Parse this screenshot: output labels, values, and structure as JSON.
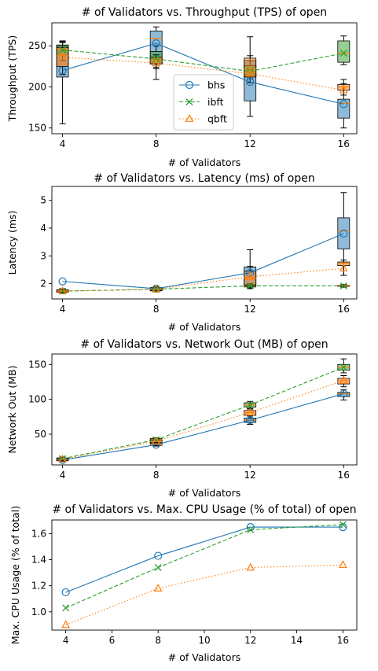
{
  "chart_data": [
    {
      "type": "line",
      "title": "# of Validators vs. Throughput (TPS) of open",
      "xlabel": "# of Validators",
      "ylabel": "Throughput (TPS)",
      "x": [
        4,
        8,
        12,
        16
      ],
      "xticks": [
        "4",
        "8",
        "12",
        "16"
      ],
      "ylim": [
        143,
        278
      ],
      "yticks": [
        150,
        200,
        250
      ],
      "legend": "center",
      "series": [
        {
          "name": "bhs",
          "color": "#1f77b4",
          "marker": "circle",
          "dash": "solid",
          "values": [
            220,
            253,
            206,
            179
          ],
          "box": [
            {
              "x": 4,
              "whislo": 155,
              "q1": 212,
              "med": 228,
              "q3": 250,
              "whishi": 256
            },
            {
              "x": 8,
              "whislo": 209,
              "q1": 228,
              "med": 259,
              "q3": 268,
              "whishi": 273
            },
            {
              "x": 12,
              "whislo": 164,
              "q1": 183,
              "med": 213,
              "q3": 232,
              "whishi": 261
            },
            {
              "x": 16,
              "whislo": 150,
              "q1": 162,
              "med": 180,
              "q3": 185,
              "whishi": 204
            }
          ]
        },
        {
          "name": "ibft",
          "color": "#2ca02c",
          "marker": "x",
          "dash": "dashed",
          "values": [
            245,
            234,
            219,
            241
          ],
          "box": [
            {
              "x": 4,
              "whislo": 232,
              "q1": 238,
              "med": 247,
              "q3": 251,
              "whishi": 254
            },
            {
              "x": 8,
              "whislo": 222,
              "q1": 228,
              "med": 235,
              "q3": 243,
              "whishi": 250
            },
            {
              "x": 12,
              "whislo": 210,
              "q1": 213,
              "med": 218,
              "q3": 226,
              "whishi": 232
            },
            {
              "x": 16,
              "whislo": 227,
              "q1": 230,
              "med": 241,
              "q3": 256,
              "whishi": 262
            }
          ]
        },
        {
          "name": "qbft",
          "color": "#ff7f0e",
          "marker": "triangle",
          "dash": "dotted",
          "values": [
            236,
            229,
            216,
            196
          ],
          "box": [
            {
              "x": 4,
              "whislo": 215,
              "q1": 225,
              "med": 238,
              "q3": 248,
              "whishi": 255
            },
            {
              "x": 8,
              "whislo": 224,
              "q1": 228,
              "med": 232,
              "q3": 236,
              "whishi": 239
            },
            {
              "x": 12,
              "whislo": 205,
              "q1": 212,
              "med": 222,
              "q3": 235,
              "whishi": 238
            },
            {
              "x": 16,
              "whislo": 190,
              "q1": 196,
              "med": 200,
              "q3": 203,
              "whishi": 209
            }
          ]
        }
      ]
    },
    {
      "type": "line",
      "title": "# of Validators vs. Latency (ms) of open",
      "xlabel": "# of Validators",
      "ylabel": "Latency (ms)",
      "x": [
        4,
        8,
        12,
        16
      ],
      "xticks": [
        "4",
        "8",
        "12",
        "16"
      ],
      "ylim": [
        1.45,
        5.5
      ],
      "yticks": [
        2,
        3,
        4,
        5
      ],
      "series": [
        {
          "name": "bhs",
          "color": "#1f77b4",
          "marker": "circle",
          "dash": "solid",
          "values": [
            2.08,
            1.82,
            2.39,
            3.8
          ],
          "box": [
            {
              "x": 4,
              "whislo": 1.66,
              "q1": 1.7,
              "med": 1.74,
              "q3": 1.78,
              "whishi": 1.82
            },
            {
              "x": 8,
              "whislo": 1.7,
              "q1": 1.74,
              "med": 1.8,
              "q3": 1.86,
              "whishi": 1.9
            },
            {
              "x": 12,
              "whislo": 1.82,
              "q1": 1.95,
              "med": 2.2,
              "q3": 2.6,
              "whishi": 3.22
            },
            {
              "x": 16,
              "whislo": 2.3,
              "q1": 3.25,
              "med": 3.9,
              "q3": 4.37,
              "whishi": 5.28
            }
          ]
        },
        {
          "name": "ibft",
          "color": "#2ca02c",
          "marker": "x",
          "dash": "dashed",
          "values": [
            1.73,
            1.8,
            1.92,
            1.92
          ],
          "box": [
            {
              "x": 4,
              "whislo": 1.68,
              "q1": 1.7,
              "med": 1.73,
              "q3": 1.76,
              "whishi": 1.78
            },
            {
              "x": 8,
              "whislo": 1.74,
              "q1": 1.77,
              "med": 1.8,
              "q3": 1.83,
              "whishi": 1.86
            },
            {
              "x": 12,
              "whislo": 1.84,
              "q1": 1.88,
              "med": 1.92,
              "q3": 1.96,
              "whishi": 2.0
            },
            {
              "x": 16,
              "whislo": 1.87,
              "q1": 1.9,
              "med": 1.92,
              "q3": 1.94,
              "whishi": 1.97
            }
          ]
        },
        {
          "name": "qbft",
          "color": "#ff7f0e",
          "marker": "triangle",
          "dash": "dotted",
          "values": [
            1.73,
            1.8,
            2.25,
            2.55
          ],
          "box": [
            {
              "x": 4,
              "whislo": 1.66,
              "q1": 1.7,
              "med": 1.74,
              "q3": 1.78,
              "whishi": 1.81
            },
            {
              "x": 8,
              "whislo": 1.72,
              "q1": 1.76,
              "med": 1.8,
              "q3": 1.84,
              "whishi": 1.88
            },
            {
              "x": 12,
              "whislo": 1.85,
              "q1": 1.95,
              "med": 2.2,
              "q3": 2.45,
              "whishi": 2.62
            },
            {
              "x": 16,
              "whislo": 2.3,
              "q1": 2.65,
              "med": 2.73,
              "q3": 2.78,
              "whishi": 2.85
            }
          ]
        }
      ]
    },
    {
      "type": "line",
      "title": "# of Validators vs. Network Out (MB) of open",
      "xlabel": "# of Validators",
      "ylabel": "Network Out (MB)",
      "x": [
        4,
        8,
        12,
        16
      ],
      "xticks": [
        "4",
        "8",
        "12",
        "16"
      ],
      "ylim": [
        6,
        165
      ],
      "yticks": [
        50,
        100,
        150
      ],
      "series": [
        {
          "name": "bhs",
          "color": "#1f77b4",
          "marker": "circle",
          "dash": "solid",
          "values": [
            13,
            35,
            70,
            108
          ],
          "box": [
            {
              "x": 4,
              "whislo": 11,
              "q1": 12,
              "med": 13,
              "q3": 14,
              "whishi": 15
            },
            {
              "x": 8,
              "whislo": 33,
              "q1": 34,
              "med": 35,
              "q3": 37,
              "whishi": 38
            },
            {
              "x": 12,
              "whislo": 64,
              "q1": 67,
              "med": 70,
              "q3": 73,
              "whishi": 76
            },
            {
              "x": 16,
              "whislo": 99,
              "q1": 104,
              "med": 108,
              "q3": 110,
              "whishi": 114
            }
          ]
        },
        {
          "name": "ibft",
          "color": "#2ca02c",
          "marker": "x",
          "dash": "dashed",
          "values": [
            15,
            42,
            92,
            146
          ],
          "box": [
            {
              "x": 4,
              "whislo": 12,
              "q1": 13,
              "med": 14,
              "q3": 16,
              "whishi": 17
            },
            {
              "x": 8,
              "whislo": 38,
              "q1": 40,
              "med": 42,
              "q3": 44,
              "whishi": 45
            },
            {
              "x": 12,
              "whislo": 86,
              "q1": 89,
              "med": 92,
              "q3": 95,
              "whishi": 97
            },
            {
              "x": 16,
              "whislo": 138,
              "q1": 142,
              "med": 146,
              "q3": 150,
              "whishi": 158
            }
          ]
        },
        {
          "name": "qbft",
          "color": "#ff7f0e",
          "marker": "triangle",
          "dash": "dotted",
          "values": [
            14,
            40,
            81,
            127
          ],
          "box": [
            {
              "x": 4,
              "whislo": 11,
              "q1": 12,
              "med": 14,
              "q3": 15,
              "whishi": 16
            },
            {
              "x": 8,
              "whislo": 36,
              "q1": 38,
              "med": 40,
              "q3": 42,
              "whishi": 44
            },
            {
              "x": 12,
              "whislo": 73,
              "q1": 77,
              "med": 81,
              "q3": 84,
              "whishi": 87
            },
            {
              "x": 16,
              "whislo": 118,
              "q1": 122,
              "med": 127,
              "q3": 130,
              "whishi": 134
            }
          ]
        }
      ]
    },
    {
      "type": "line",
      "title": "# of Validators vs. Max. CPU Usage (% of total) of open",
      "xlabel": "# of Validators",
      "ylabel": "Max. CPU Usage (% of total)",
      "xlim": [
        3.4,
        16.6
      ],
      "xticks": [
        "4",
        "6",
        "8",
        "10",
        "12",
        "14",
        "16"
      ],
      "xtick_values": [
        4,
        6,
        8,
        10,
        12,
        14,
        16
      ],
      "ylim": [
        0.86,
        1.705
      ],
      "yticks": [
        1.0,
        1.2,
        1.4,
        1.6
      ],
      "x": [
        4,
        8,
        12,
        16
      ],
      "series": [
        {
          "name": "bhs",
          "color": "#1f77b4",
          "marker": "circle",
          "dash": "solid",
          "values": [
            1.15,
            1.43,
            1.65,
            1.65
          ]
        },
        {
          "name": "ibft",
          "color": "#2ca02c",
          "marker": "x",
          "dash": "dashed",
          "values": [
            1.03,
            1.34,
            1.63,
            1.67
          ]
        },
        {
          "name": "qbft",
          "color": "#ff7f0e",
          "marker": "triangle",
          "dash": "dotted",
          "values": [
            0.9,
            1.18,
            1.34,
            1.36
          ]
        }
      ]
    }
  ]
}
